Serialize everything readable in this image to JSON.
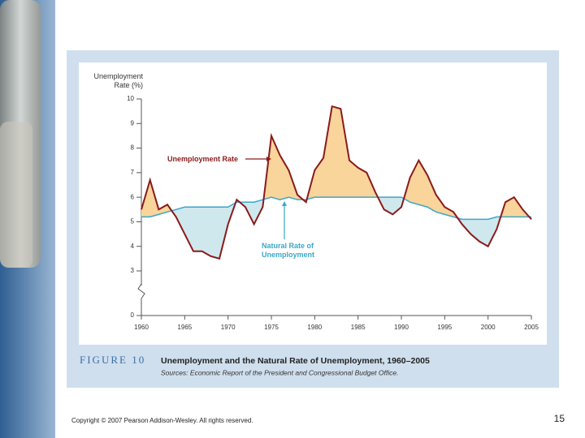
{
  "chart_data": {
    "type": "line",
    "y_label": "Unemployment Rate (%)",
    "figure_label": "FIGURE 10",
    "title": "Unemployment and the Natural Rate of Unemployment, 1960–2005",
    "sources": "Sources: Economic Report of the President and Congressional Budget Office.",
    "x": [
      1960,
      1961,
      1962,
      1963,
      1964,
      1965,
      1966,
      1967,
      1968,
      1969,
      1970,
      1971,
      1972,
      1973,
      1974,
      1975,
      1976,
      1977,
      1978,
      1979,
      1980,
      1981,
      1982,
      1983,
      1984,
      1985,
      1986,
      1987,
      1988,
      1989,
      1990,
      1991,
      1992,
      1993,
      1994,
      1995,
      1996,
      1997,
      1998,
      1999,
      2000,
      2001,
      2002,
      2003,
      2004,
      2005
    ],
    "series": [
      {
        "name": "Unemployment Rate",
        "color": "#8b1a1a",
        "values": [
          5.5,
          6.7,
          5.5,
          5.7,
          5.2,
          4.5,
          3.8,
          3.8,
          3.6,
          3.5,
          4.9,
          5.9,
          5.6,
          4.9,
          5.6,
          8.5,
          7.7,
          7.1,
          6.1,
          5.8,
          7.1,
          7.6,
          9.7,
          9.6,
          7.5,
          7.2,
          7.0,
          6.2,
          5.5,
          5.3,
          5.6,
          6.8,
          7.5,
          6.9,
          6.1,
          5.6,
          5.4,
          4.9,
          4.5,
          4.2,
          4.0,
          4.7,
          5.8,
          6.0,
          5.5,
          5.1
        ]
      },
      {
        "name": "Natural Rate of Unemployment",
        "color": "#3aa7c9",
        "values": [
          5.2,
          5.2,
          5.3,
          5.4,
          5.5,
          5.6,
          5.6,
          5.6,
          5.6,
          5.6,
          5.6,
          5.8,
          5.8,
          5.8,
          5.9,
          6.0,
          5.9,
          6.0,
          5.9,
          5.9,
          6.0,
          6.0,
          6.0,
          6.0,
          6.0,
          6.0,
          6.0,
          6.0,
          6.0,
          6.0,
          6.0,
          5.8,
          5.7,
          5.6,
          5.4,
          5.3,
          5.2,
          5.1,
          5.1,
          5.1,
          5.1,
          5.2,
          5.2,
          5.2,
          5.2,
          5.2
        ]
      }
    ],
    "above_color": "#f9d49b",
    "below_color": "#cfe8ee",
    "xlim": [
      1960,
      2005
    ],
    "xticks": [
      1960,
      1965,
      1970,
      1975,
      1980,
      1985,
      1990,
      1995,
      2000,
      2005
    ],
    "ylim": [
      0,
      10
    ],
    "yticks": [
      0,
      3,
      4,
      5,
      6,
      7,
      8,
      9,
      10
    ],
    "y_axis_break": true
  },
  "footer": {
    "copyright": "Copyright © 2007 Pearson Addison-Wesley. All rights reserved.",
    "page": "15"
  }
}
